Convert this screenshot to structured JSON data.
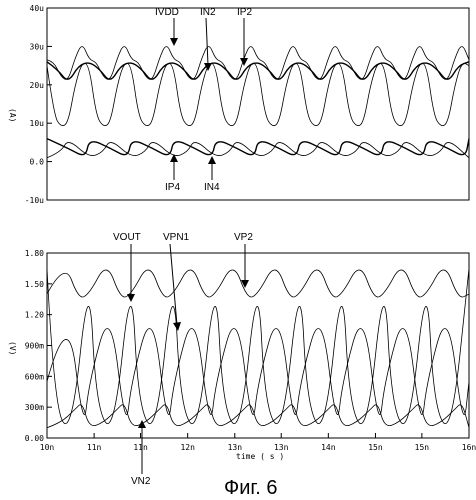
{
  "caption": "Фиг. 6",
  "chart_data": [
    {
      "type": "line",
      "ylabel": "(A)",
      "ylim": [
        -10,
        40
      ],
      "y_ticks": [
        "40u",
        "30u",
        "20u",
        "10u",
        "0.0",
        "-10u"
      ],
      "y_tick_values": [
        40,
        30,
        20,
        10,
        0,
        -10
      ],
      "xlim": [
        10,
        16
      ],
      "period_ns": 0.6,
      "series": [
        {
          "name": "IVDD",
          "style": "thin",
          "x": [
            10.0,
            10.1,
            10.2,
            10.3,
            10.4,
            10.5,
            10.6
          ],
          "values": [
            26.5,
            26,
            22,
            21,
            27,
            31,
            28
          ]
        },
        {
          "name": "IN2",
          "style": "bold",
          "x": [
            10.0,
            10.15,
            10.3,
            10.45,
            10.6
          ],
          "values": [
            26,
            24,
            20.5,
            25,
            26
          ]
        },
        {
          "name": "IP2",
          "style": "thin",
          "x": [
            10.0,
            10.1,
            10.2,
            10.3,
            10.4,
            10.5,
            10.6
          ],
          "values": [
            25,
            12,
            9,
            10,
            20,
            26,
            25
          ]
        },
        {
          "name": "IP4",
          "style": "bold",
          "x": [
            10.0,
            10.3,
            10.55,
            10.6
          ],
          "values": [
            6,
            3.5,
            1,
            6
          ]
        },
        {
          "name": "IN4",
          "style": "thin",
          "x": [
            10.0,
            10.2,
            10.3,
            10.6
          ],
          "values": [
            1,
            2.5,
            6,
            1
          ]
        }
      ],
      "annotations": [
        "IVDD",
        "IN2",
        "IP2",
        "IP4",
        "IN4"
      ]
    },
    {
      "type": "line",
      "xlabel": "time ( s )",
      "ylabel": "(V)",
      "ylim": [
        0,
        1.8
      ],
      "y_ticks": [
        "1.80",
        "1.50",
        "1.20",
        "900m",
        "600m",
        "300m",
        "0.00"
      ],
      "y_tick_values": [
        1.8,
        1.5,
        1.2,
        0.9,
        0.6,
        0.3,
        0.0
      ],
      "xlim": [
        10,
        16
      ],
      "x_ticks": [
        "10n",
        "11n",
        "11n",
        "12n",
        "13n",
        "13n",
        "14n",
        "15n",
        "15n",
        "16n"
      ],
      "x_tick_values": [
        10,
        10.67,
        11.33,
        12,
        12.67,
        13.33,
        14,
        14.67,
        15.33,
        16
      ],
      "period_ns": 0.6,
      "series": [
        {
          "name": "VOUT",
          "style": "thin",
          "x": [
            10.0,
            10.25,
            10.45,
            10.6
          ],
          "values": [
            1.4,
            1.72,
            1.35,
            1.4
          ]
        },
        {
          "name": "VPN1",
          "style": "thin",
          "x": [
            10.0,
            10.3,
            10.52,
            10.6
          ],
          "values": [
            0.55,
            1.3,
            0.05,
            0.55
          ]
        },
        {
          "name": "VP2",
          "style": "thin",
          "x": [
            10.0,
            10.1,
            10.35,
            10.6
          ],
          "values": [
            1.65,
            0.3,
            0.02,
            1.65
          ]
        },
        {
          "name": "VN2",
          "style": "thin",
          "x": [
            10.0,
            10.2,
            10.4,
            10.5,
            10.6
          ],
          "values": [
            0.1,
            0.15,
            0.28,
            0.35,
            0.1
          ]
        }
      ],
      "annotations": [
        "VOUT",
        "VPN1",
        "VP2",
        "VN2"
      ]
    }
  ]
}
